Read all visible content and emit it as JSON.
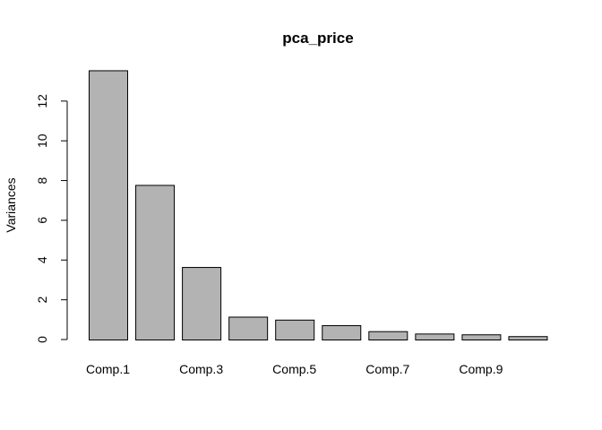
{
  "chart_data": {
    "type": "bar",
    "title": "pca_price",
    "xlabel": "",
    "ylabel": "Variances",
    "categories": [
      "Comp.1",
      "Comp.2",
      "Comp.3",
      "Comp.4",
      "Comp.5",
      "Comp.6",
      "Comp.7",
      "Comp.8",
      "Comp.9",
      "Comp.10"
    ],
    "shown_category_labels": [
      "Comp.1",
      "Comp.3",
      "Comp.5",
      "Comp.7",
      "Comp.9"
    ],
    "values": [
      13.55,
      7.78,
      3.65,
      1.15,
      1.0,
      0.72,
      0.42,
      0.3,
      0.26,
      0.17
    ],
    "ylim": [
      0,
      13.55
    ],
    "yticks": [
      0,
      2,
      4,
      6,
      8,
      10,
      12
    ],
    "bar_color": "#b3b3b3",
    "grid": false
  }
}
